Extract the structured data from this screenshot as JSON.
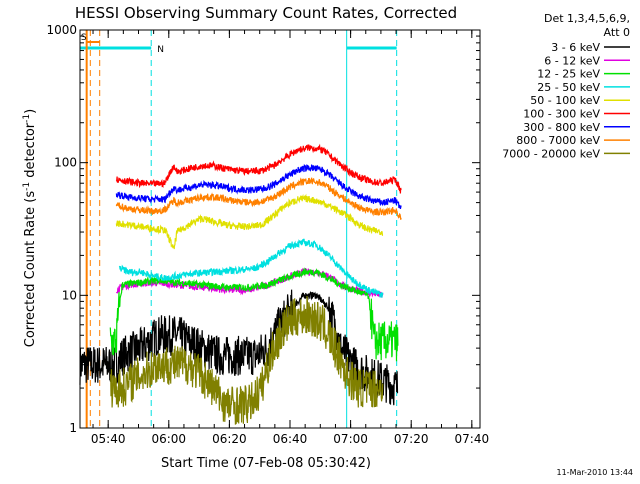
{
  "chart_data": {
    "type": "line",
    "title": "HESSI Observing Summary Count Rates, Corrected",
    "xlabel": "Start Time (07-Feb-08 05:30:42)",
    "ylabel_main": "Corrected Count Rate (s",
    "ylabel_sup1": "-1",
    "ylabel_mid": " detector",
    "ylabel_sup2": "-1",
    "ylabel_end": ")",
    "x_unit": "minutes since 05:30:42",
    "xlim": [
      0,
      132
    ],
    "ylim": [
      1,
      1000
    ],
    "y_scale": "log",
    "x_ticks": [
      {
        "t": 9.3,
        "label": "05:40"
      },
      {
        "t": 29.3,
        "label": "06:00"
      },
      {
        "t": 49.3,
        "label": "06:20"
      },
      {
        "t": 69.3,
        "label": "06:40"
      },
      {
        "t": 89.3,
        "label": "07:00"
      },
      {
        "t": 109.3,
        "label": "07:20"
      },
      {
        "t": 129.3,
        "label": "07:40"
      }
    ],
    "y_ticks": [
      {
        "v": 1,
        "label": "1"
      },
      {
        "v": 10,
        "label": "10"
      },
      {
        "v": 100,
        "label": "100"
      },
      {
        "v": 1000,
        "label": "1000"
      }
    ],
    "legend": {
      "header": [
        "Det 1,3,4,5,6,9,",
        "Att 0"
      ],
      "placement": "right"
    },
    "series": [
      {
        "name": "3 - 6 keV",
        "color": "#000000",
        "points": [
          [
            0,
            3
          ],
          [
            4,
            3
          ],
          [
            12,
            3
          ],
          [
            14,
            3.5
          ],
          [
            20,
            4
          ],
          [
            26,
            5
          ],
          [
            32,
            5
          ],
          [
            36,
            4.5
          ],
          [
            40,
            4
          ],
          [
            46,
            3.5
          ],
          [
            52,
            3.5
          ],
          [
            58,
            3.5
          ],
          [
            62,
            4
          ],
          [
            66,
            6
          ],
          [
            70,
            8
          ],
          [
            74,
            10
          ],
          [
            78,
            10
          ],
          [
            82,
            8
          ],
          [
            86,
            4
          ],
          [
            90,
            3
          ],
          [
            95,
            2.5
          ],
          [
            105,
            2
          ]
        ]
      },
      {
        "name": "6 - 12 keV",
        "color": "#e000e0",
        "points": [
          [
            12,
            11
          ],
          [
            16,
            12
          ],
          [
            24,
            12.5
          ],
          [
            32,
            12
          ],
          [
            40,
            11.5
          ],
          [
            48,
            11
          ],
          [
            56,
            11
          ],
          [
            62,
            12
          ],
          [
            66,
            13
          ],
          [
            70,
            14
          ],
          [
            74,
            15
          ],
          [
            78,
            15
          ],
          [
            82,
            14
          ],
          [
            86,
            12
          ],
          [
            90,
            11
          ],
          [
            95,
            10.5
          ],
          [
            100,
            10
          ]
        ]
      },
      {
        "name": "12 - 25 keV",
        "color": "#00e000",
        "points": [
          [
            10,
            4.5
          ],
          [
            12,
            4.5
          ],
          [
            14,
            12
          ],
          [
            20,
            12.5
          ],
          [
            26,
            13
          ],
          [
            32,
            12.5
          ],
          [
            40,
            12
          ],
          [
            48,
            11.5
          ],
          [
            56,
            11.5
          ],
          [
            62,
            12
          ],
          [
            66,
            13
          ],
          [
            70,
            14
          ],
          [
            74,
            15
          ],
          [
            78,
            15
          ],
          [
            82,
            13.5
          ],
          [
            86,
            12
          ],
          [
            90,
            11
          ],
          [
            95,
            10
          ],
          [
            97,
            4.5
          ],
          [
            105,
            4.5
          ]
        ]
      },
      {
        "name": "25 - 50 keV",
        "color": "#00e0e0",
        "points": [
          [
            13,
            16
          ],
          [
            16,
            15
          ],
          [
            20,
            15
          ],
          [
            24,
            14
          ],
          [
            28,
            13.5
          ],
          [
            32,
            14
          ],
          [
            36,
            14.5
          ],
          [
            44,
            15
          ],
          [
            52,
            15.5
          ],
          [
            58,
            16
          ],
          [
            62,
            18
          ],
          [
            66,
            21
          ],
          [
            70,
            24
          ],
          [
            74,
            25
          ],
          [
            78,
            24
          ],
          [
            82,
            20
          ],
          [
            86,
            16
          ],
          [
            90,
            13
          ],
          [
            95,
            11
          ],
          [
            100,
            10
          ]
        ]
      },
      {
        "name": "50 - 100 keV",
        "color": "#e0e000",
        "points": [
          [
            12,
            35
          ],
          [
            16,
            34
          ],
          [
            20,
            33
          ],
          [
            24,
            32
          ],
          [
            28,
            31
          ],
          [
            31,
            22
          ],
          [
            32,
            30
          ],
          [
            36,
            34
          ],
          [
            40,
            38
          ],
          [
            44,
            36
          ],
          [
            48,
            34
          ],
          [
            52,
            33
          ],
          [
            56,
            33
          ],
          [
            60,
            34
          ],
          [
            64,
            40
          ],
          [
            68,
            48
          ],
          [
            72,
            53
          ],
          [
            76,
            53
          ],
          [
            80,
            50
          ],
          [
            84,
            45
          ],
          [
            88,
            40
          ],
          [
            92,
            34
          ],
          [
            96,
            31
          ],
          [
            100,
            30
          ]
        ]
      },
      {
        "name": "100 - 300 keV",
        "color": "#ff0000",
        "points": [
          [
            12,
            75
          ],
          [
            16,
            72
          ],
          [
            20,
            70
          ],
          [
            24,
            69
          ],
          [
            28,
            70
          ],
          [
            31,
            95
          ],
          [
            32,
            85
          ],
          [
            36,
            90
          ],
          [
            40,
            95
          ],
          [
            44,
            95
          ],
          [
            48,
            90
          ],
          [
            52,
            87
          ],
          [
            56,
            86
          ],
          [
            60,
            87
          ],
          [
            64,
            95
          ],
          [
            68,
            110
          ],
          [
            72,
            125
          ],
          [
            76,
            130
          ],
          [
            80,
            125
          ],
          [
            84,
            105
          ],
          [
            88,
            88
          ],
          [
            92,
            78
          ],
          [
            96,
            72
          ],
          [
            100,
            70
          ],
          [
            104,
            75
          ],
          [
            106,
            60
          ]
        ]
      },
      {
        "name": "300 - 800 keV",
        "color": "#0000ff",
        "points": [
          [
            12,
            58
          ],
          [
            16,
            55
          ],
          [
            20,
            54
          ],
          [
            24,
            53
          ],
          [
            28,
            53
          ],
          [
            31,
            65
          ],
          [
            32,
            62
          ],
          [
            36,
            65
          ],
          [
            40,
            68
          ],
          [
            44,
            68
          ],
          [
            48,
            65
          ],
          [
            52,
            63
          ],
          [
            56,
            62
          ],
          [
            60,
            63
          ],
          [
            64,
            68
          ],
          [
            68,
            78
          ],
          [
            72,
            88
          ],
          [
            76,
            92
          ],
          [
            80,
            88
          ],
          [
            84,
            75
          ],
          [
            88,
            63
          ],
          [
            92,
            56
          ],
          [
            96,
            52
          ],
          [
            100,
            50
          ],
          [
            104,
            52
          ],
          [
            106,
            45
          ]
        ]
      },
      {
        "name": "800 - 7000 keV",
        "color": "#ff8000",
        "points": [
          [
            12,
            48
          ],
          [
            16,
            45
          ],
          [
            20,
            44
          ],
          [
            24,
            43
          ],
          [
            28,
            44
          ],
          [
            31,
            52
          ],
          [
            32,
            50
          ],
          [
            36,
            52
          ],
          [
            40,
            55
          ],
          [
            44,
            55
          ],
          [
            48,
            53
          ],
          [
            52,
            51
          ],
          [
            56,
            50
          ],
          [
            60,
            51
          ],
          [
            64,
            55
          ],
          [
            68,
            63
          ],
          [
            72,
            70
          ],
          [
            76,
            73
          ],
          [
            80,
            70
          ],
          [
            84,
            60
          ],
          [
            88,
            52
          ],
          [
            92,
            46
          ],
          [
            96,
            43
          ],
          [
            100,
            42
          ],
          [
            104,
            44
          ],
          [
            106,
            38
          ]
        ]
      },
      {
        "name": "7000 - 20000 keV",
        "color": "#808000",
        "points": [
          [
            10,
            2
          ],
          [
            14,
            2
          ],
          [
            20,
            2.5
          ],
          [
            26,
            3
          ],
          [
            32,
            3
          ],
          [
            36,
            3
          ],
          [
            40,
            2.5
          ],
          [
            44,
            2
          ],
          [
            48,
            1.5
          ],
          [
            52,
            1.5
          ],
          [
            56,
            1.5
          ],
          [
            60,
            2
          ],
          [
            64,
            4
          ],
          [
            68,
            6
          ],
          [
            72,
            7
          ],
          [
            76,
            7
          ],
          [
            80,
            6
          ],
          [
            84,
            4
          ],
          [
            88,
            2.5
          ],
          [
            92,
            2
          ],
          [
            96,
            2
          ],
          [
            100,
            2
          ]
        ]
      }
    ],
    "attenuator_segments": [
      {
        "kind": "bar",
        "x0": 0,
        "x1": 23.5,
        "color": "#00e0e0"
      },
      {
        "kind": "bar",
        "x0": 88,
        "x1": 104.5,
        "color": "#00e0e0"
      }
    ],
    "night_label": "N",
    "saa_label": "S",
    "corner_date": "11-Mar-2010 13:44"
  }
}
